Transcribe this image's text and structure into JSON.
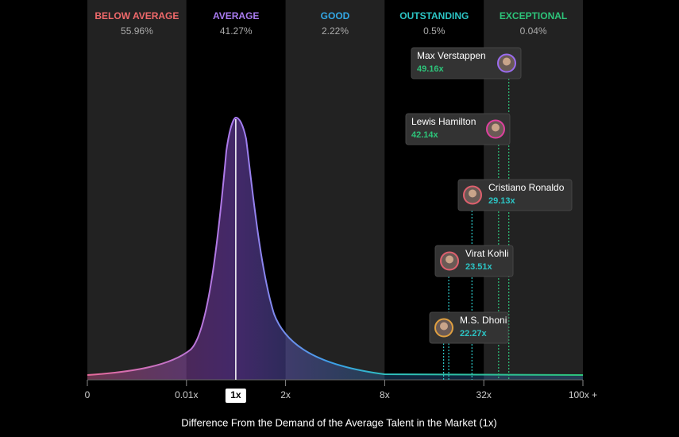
{
  "chart_data": {
    "type": "talent-distribution",
    "x_label": "Difference From the Demand of the Average Talent in the Market (1x)",
    "categories": [
      "BELOW AVERAGE",
      "AVERAGE",
      "GOOD",
      "OUTSTANDING",
      "EXCEPTIONAL"
    ],
    "values": [
      55.96,
      41.27,
      2.22,
      0.5,
      0.04
    ],
    "value_labels": [
      "55.96%",
      "41.27%",
      "2.22%",
      "0.5%",
      "0.04%"
    ],
    "colors": [
      "#f0696b",
      "#a97bf0",
      "#33a8e6",
      "#2cc4c4",
      "#2dc47a"
    ],
    "xticks": [
      0,
      {
        "value": 0.01,
        "label": "0.01x"
      },
      {
        "value": 2,
        "label": "2x"
      },
      {
        "value": 8,
        "label": "8x"
      },
      {
        "value": 32,
        "label": "32x"
      },
      {
        "value": 100,
        "label": "100x +"
      }
    ],
    "reference": {
      "value": 1,
      "label": "1x"
    },
    "people": {
      "names": [
        "Max Verstappen",
        "Lewis Hamilton",
        "Cristiano Ronaldo",
        "Virat Kohli",
        "M.S. Dhoni"
      ],
      "values": [
        49.16,
        42.14,
        29.13,
        23.51,
        22.27
      ],
      "value_labels": [
        "49.16x",
        "42.14x",
        "29.13x",
        "23.51x",
        "22.27x"
      ],
      "colors": [
        "#9b6cf0",
        "#e040a0",
        "#e0606e",
        "#e0606e",
        "#e0a040"
      ]
    }
  }
}
